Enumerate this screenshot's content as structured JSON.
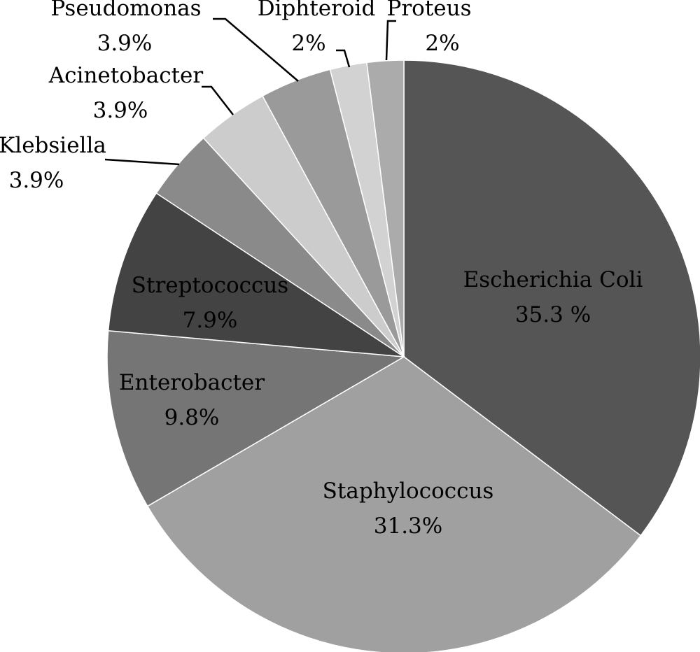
{
  "chart_data": {
    "type": "pie",
    "title": "",
    "start_angle_deg": 0,
    "direction": "clockwise",
    "slices": [
      {
        "name": "Escherichia Coli",
        "value": 35.3,
        "label": "35.3 %",
        "color": "#555555",
        "label_position": "inside"
      },
      {
        "name": "Staphylococcus",
        "value": 31.3,
        "label": "31.3%",
        "color": "#a0a0a0",
        "label_position": "inside"
      },
      {
        "name": "Enterobacter",
        "value": 9.8,
        "label": "9.8%",
        "color": "#757575",
        "label_position": "inside"
      },
      {
        "name": "Streptococcus",
        "value": 7.9,
        "label": "7.9%",
        "color": "#434343",
        "label_position": "inside"
      },
      {
        "name": "Klebsiella",
        "value": 3.9,
        "label": "3.9%",
        "color": "#8a8a8a",
        "label_position": "outside"
      },
      {
        "name": "Acinetobacter",
        "value": 3.9,
        "label": "3.9%",
        "color": "#cccccc",
        "label_position": "outside"
      },
      {
        "name": "Pseudomonas",
        "value": 3.9,
        "label": "3.9%",
        "color": "#9a9a9a",
        "label_position": "outside"
      },
      {
        "name": "Diphteroid",
        "value": 2,
        "label": "2%",
        "color": "#d2d2d2",
        "label_position": "outside"
      },
      {
        "name": "Proteus",
        "value": 2,
        "label": "2%",
        "color": "#ababab",
        "label_position": "outside"
      }
    ]
  }
}
